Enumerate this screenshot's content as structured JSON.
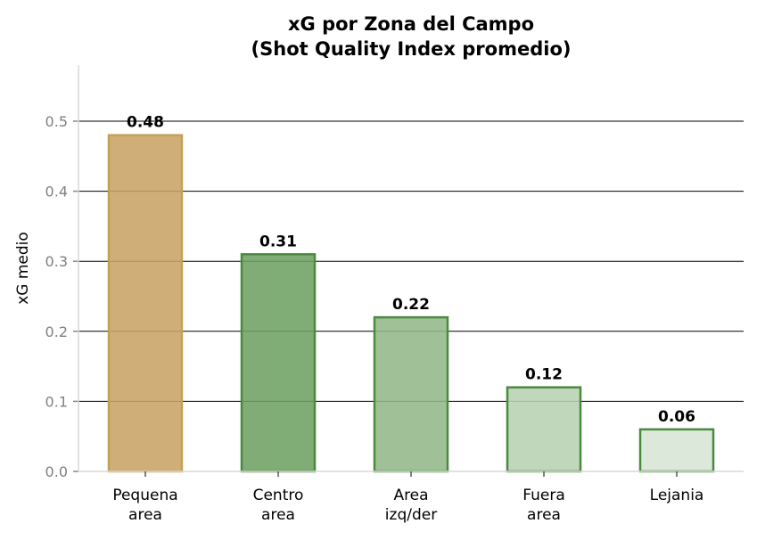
{
  "chart_data": {
    "type": "bar",
    "title": "xG por Zona del Campo\n(Shot Quality Index promedio)",
    "title_lines": [
      "xG por Zona del Campo",
      "(Shot Quality Index promedio)"
    ],
    "xlabel": "",
    "ylabel": "xG medio",
    "categories": [
      "Pequena\narea",
      "Centro\narea",
      "Area\nizq/der",
      "Fuera\narea",
      "Lejania"
    ],
    "values": [
      0.48,
      0.31,
      0.22,
      0.12,
      0.06
    ],
    "data_labels": [
      "0.48",
      "0.31",
      "0.22",
      "0.12",
      "0.06"
    ],
    "ylim": [
      0,
      0.58
    ],
    "yticks": [
      0.0,
      0.1,
      0.2,
      0.3,
      0.4,
      0.5
    ],
    "ytick_labels": [
      "0.0",
      "0.1",
      "0.2",
      "0.3",
      "0.4",
      "0.5"
    ],
    "grid": "y",
    "bar_colors": [
      "#c8a464",
      "#6ea263",
      "#93b889",
      "#b8d2b3",
      "#d7e5d4"
    ],
    "bar_edge_colors": [
      "#c4a055",
      "#4a8a3f",
      "#4a8a3f",
      "#4a8a3f",
      "#4a8a3f"
    ]
  }
}
